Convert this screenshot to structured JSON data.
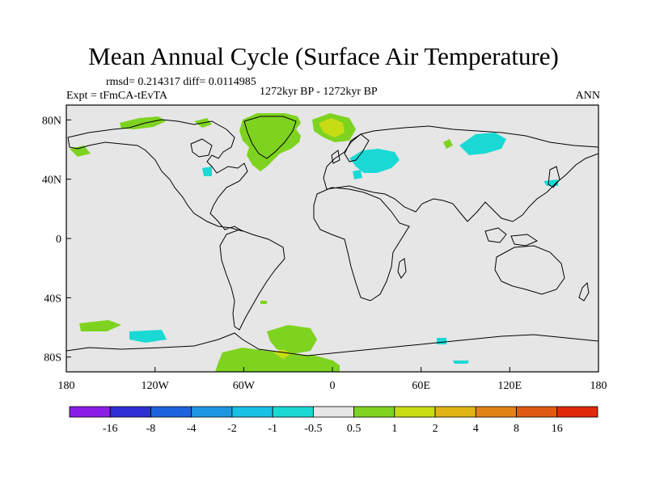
{
  "title": "Mean Annual Cycle (Surface Air Temperature)",
  "stats": "rmsd= 0.214317 diff= 0.0114985",
  "expt": "Expt = tFmCA-tEvTA",
  "period": "1272kyr BP - 1272kyr BP",
  "season": "ANN",
  "lat_labels": [
    "80N",
    "40N",
    "0",
    "40S",
    "80S"
  ],
  "lon_labels": [
    "180",
    "120W",
    "60W",
    "0",
    "60E",
    "120E",
    "180"
  ],
  "colorbar": {
    "labels": [
      "-16",
      "-8",
      "-4",
      "-2",
      "-1",
      "-0.5",
      "0.5",
      "1",
      "2",
      "4",
      "8",
      "16"
    ],
    "colors": [
      "#8a1ee6",
      "#2f2fd6",
      "#1d63e0",
      "#1f97e0",
      "#18c0e6",
      "#1ad9d4",
      "#e6e6e6",
      "#7ed320",
      "#c8dc14",
      "#e0b414",
      "#e08214",
      "#e05a14",
      "#e0280a"
    ]
  },
  "map": {
    "background": "#e6e6e6",
    "anomalies": [
      {
        "region": "Greenland",
        "category": "1"
      },
      {
        "region": "Iceland / Barents",
        "category": "2"
      },
      {
        "region": "North Siberia",
        "category": "1"
      },
      {
        "region": "Scandinavia / Eastern Europe",
        "category": "-1"
      },
      {
        "region": "Central Siberia",
        "category": "-1"
      },
      {
        "region": "Hudson Bay",
        "category": "-1"
      },
      {
        "region": "Southern Ocean Pacific",
        "category": "1"
      },
      {
        "region": "Southern Ocean",
        "category": "-1"
      },
      {
        "region": "Antarctica",
        "category": "1"
      }
    ]
  }
}
